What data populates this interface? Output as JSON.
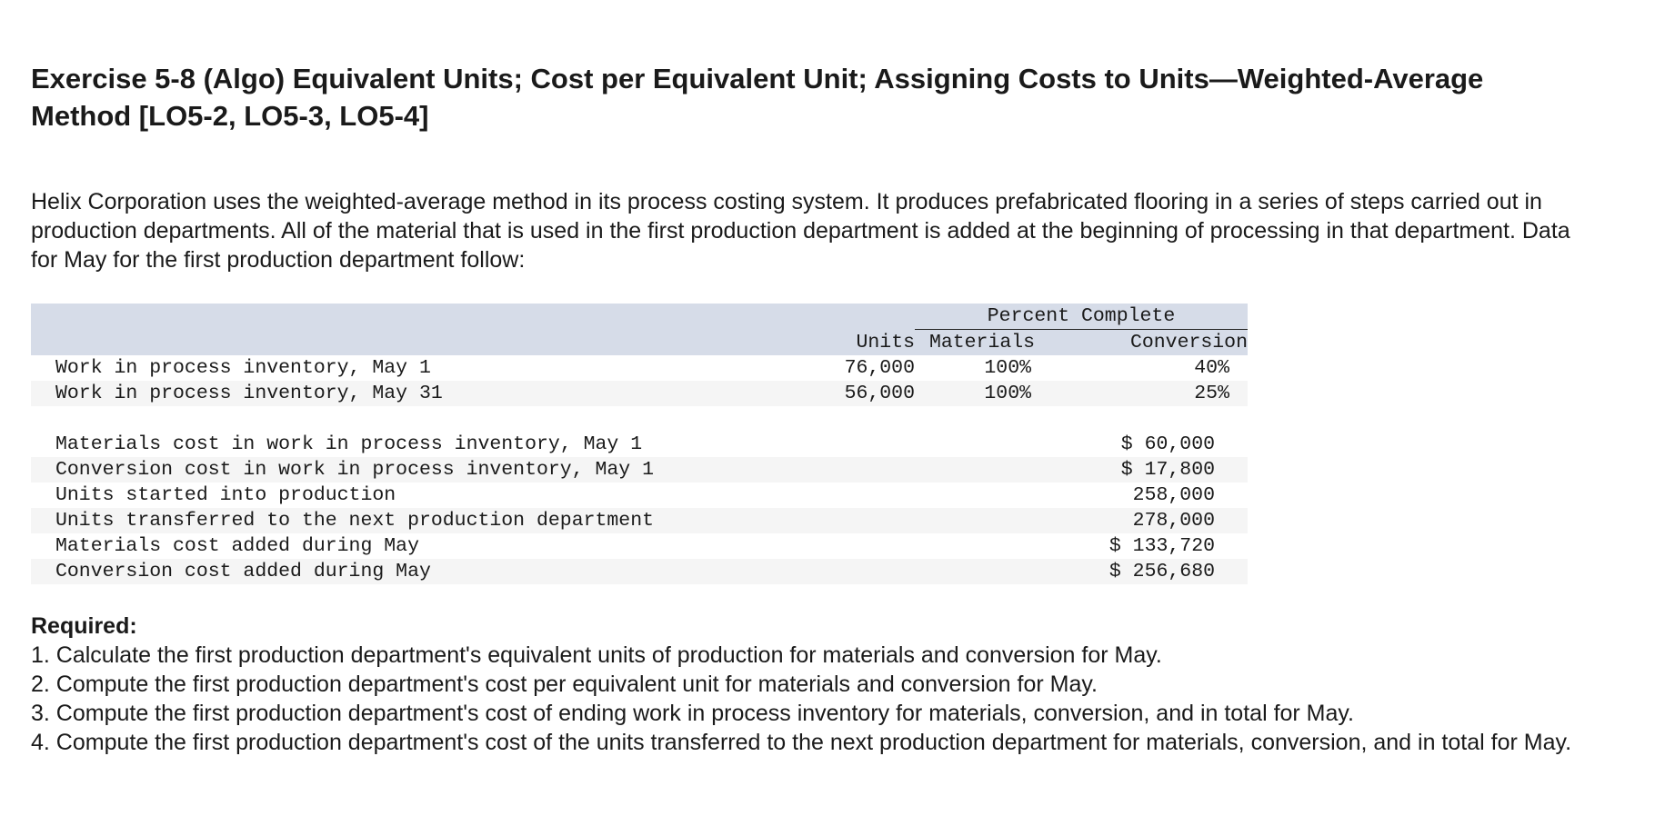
{
  "title": "Exercise 5-8 (Algo) Equivalent Units; Cost per Equivalent Unit; Assigning Costs to Units—Weighted-Average Method [LO5-2, LO5-3, LO5-4]",
  "intro": "Helix Corporation uses the weighted-average method in its process costing system. It produces prefabricated flooring in a series of steps carried out in production departments. All of the material that is used in the first production department is added at the beginning of processing in that department. Data for May for the first production department follow:",
  "table": {
    "percent_complete_header": "Percent Complete",
    "col_units": "Units",
    "col_materials": "Materials",
    "col_conversion": "Conversion",
    "wip_rows": [
      {
        "label": "Work in process inventory, May 1",
        "units": "76,000",
        "materials": "100%",
        "conversion": "40%"
      },
      {
        "label": "Work in process inventory, May 31",
        "units": "56,000",
        "materials": "100%",
        "conversion": "25%"
      }
    ],
    "cost_rows": [
      {
        "label": "Materials cost in work in process inventory, May 1",
        "value": "$ 60,000"
      },
      {
        "label": "Conversion cost in work in process inventory, May 1",
        "value": "$ 17,800"
      },
      {
        "label": "Units started into production",
        "value": "258,000"
      },
      {
        "label": "Units transferred to the next production department",
        "value": "278,000"
      },
      {
        "label": "Materials cost added during May",
        "value": "$ 133,720"
      },
      {
        "label": "Conversion cost added during May",
        "value": "$ 256,680"
      }
    ]
  },
  "required": {
    "title": "Required:",
    "items": [
      "1. Calculate the first production department's equivalent units of production for materials and conversion for May.",
      "2. Compute the first production department's cost per equivalent unit for materials and conversion for May.",
      "3. Compute the first production department's cost of ending work in process inventory for materials, conversion, and in total for May.",
      "4. Compute the first production department's cost of the units transferred to the next production department for materials, conversion, and in total for May."
    ]
  }
}
